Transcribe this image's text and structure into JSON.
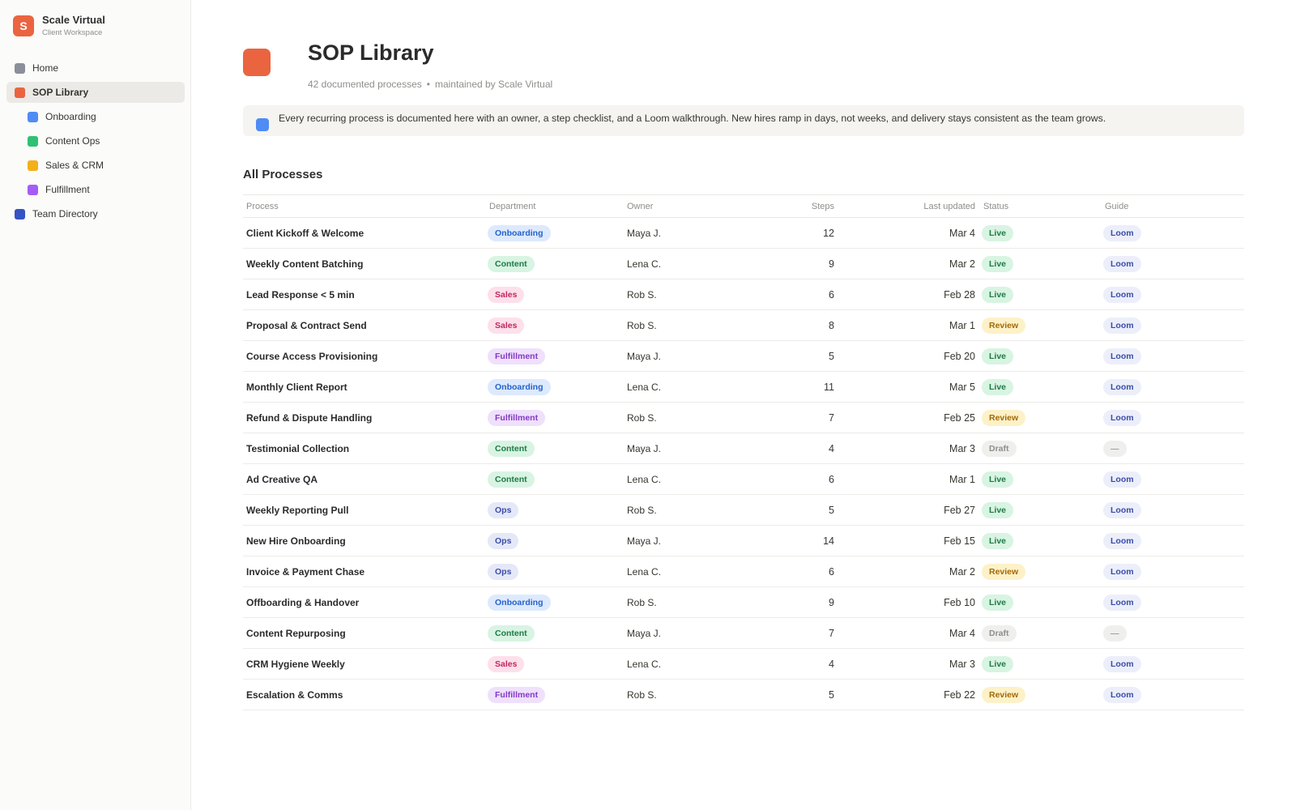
{
  "workspace": {
    "initial": "S",
    "name": "Scale Virtual",
    "subtitle": "Client Workspace"
  },
  "nav": [
    {
      "label": "Home",
      "color": "#8a8f99",
      "level": 0,
      "active": false
    },
    {
      "label": "SOP Library",
      "color": "#eb6440",
      "level": 0,
      "active": true
    },
    {
      "label": "Onboarding",
      "color": "#4f8cf5",
      "level": 1,
      "active": false
    },
    {
      "label": "Content Ops",
      "color": "#2fc172",
      "level": 1,
      "active": false
    },
    {
      "label": "Sales & CRM",
      "color": "#f2b019",
      "level": 1,
      "active": false
    },
    {
      "label": "Fulfillment",
      "color": "#a45cf5",
      "level": 1,
      "active": false
    },
    {
      "label": "Team Directory",
      "color": "#3653c4",
      "level": 0,
      "active": false
    }
  ],
  "page": {
    "title": "SOP Library",
    "meta_count": "42 documented processes",
    "meta_separator": "•",
    "meta_owner": "maintained by Scale Virtual",
    "callout": "Every recurring process is documented here with an owner, a step checklist, and a Loom walkthrough. New hires ramp in days, not weeks, and delivery stays consistent as the team grows.",
    "section_title": "All Processes"
  },
  "table": {
    "columns": [
      "Process",
      "Department",
      "Owner",
      "Steps",
      "Last updated",
      "Status",
      "Guide"
    ],
    "rows": [
      {
        "process": "Client Kickoff & Welcome",
        "department": "Onboarding",
        "owner": "Maya J.",
        "steps": "12",
        "updated": "Mar 4",
        "status": "Live",
        "guide": "Loom"
      },
      {
        "process": "Weekly Content Batching",
        "department": "Content",
        "owner": "Lena C.",
        "steps": "9",
        "updated": "Mar 2",
        "status": "Live",
        "guide": "Loom"
      },
      {
        "process": "Lead Response < 5 min",
        "department": "Sales",
        "owner": "Rob S.",
        "steps": "6",
        "updated": "Feb 28",
        "status": "Live",
        "guide": "Loom"
      },
      {
        "process": "Proposal & Contract Send",
        "department": "Sales",
        "owner": "Rob S.",
        "steps": "8",
        "updated": "Mar 1",
        "status": "Review",
        "guide": "Loom"
      },
      {
        "process": "Course Access Provisioning",
        "department": "Fulfillment",
        "owner": "Maya J.",
        "steps": "5",
        "updated": "Feb 20",
        "status": "Live",
        "guide": "Loom"
      },
      {
        "process": "Monthly Client Report",
        "department": "Onboarding",
        "owner": "Lena C.",
        "steps": "11",
        "updated": "Mar 5",
        "status": "Live",
        "guide": "Loom"
      },
      {
        "process": "Refund & Dispute Handling",
        "department": "Fulfillment",
        "owner": "Rob S.",
        "steps": "7",
        "updated": "Feb 25",
        "status": "Review",
        "guide": "Loom"
      },
      {
        "process": "Testimonial Collection",
        "department": "Content",
        "owner": "Maya J.",
        "steps": "4",
        "updated": "Mar 3",
        "status": "Draft",
        "guide": "—"
      },
      {
        "process": "Ad Creative QA",
        "department": "Content",
        "owner": "Lena C.",
        "steps": "6",
        "updated": "Mar 1",
        "status": "Live",
        "guide": "Loom"
      },
      {
        "process": "Weekly Reporting Pull",
        "department": "Ops",
        "owner": "Rob S.",
        "steps": "5",
        "updated": "Feb 27",
        "status": "Live",
        "guide": "Loom"
      },
      {
        "process": "New Hire Onboarding",
        "department": "Ops",
        "owner": "Maya J.",
        "steps": "14",
        "updated": "Feb 15",
        "status": "Live",
        "guide": "Loom"
      },
      {
        "process": "Invoice & Payment Chase",
        "department": "Ops",
        "owner": "Lena C.",
        "steps": "6",
        "updated": "Mar 2",
        "status": "Review",
        "guide": "Loom"
      },
      {
        "process": "Offboarding & Handover",
        "department": "Onboarding",
        "owner": "Rob S.",
        "steps": "9",
        "updated": "Feb 10",
        "status": "Live",
        "guide": "Loom"
      },
      {
        "process": "Content Repurposing",
        "department": "Content",
        "owner": "Maya J.",
        "steps": "7",
        "updated": "Mar 4",
        "status": "Draft",
        "guide": "—"
      },
      {
        "process": "CRM Hygiene Weekly",
        "department": "Sales",
        "owner": "Lena C.",
        "steps": "4",
        "updated": "Mar 3",
        "status": "Live",
        "guide": "Loom"
      },
      {
        "process": "Escalation & Comms",
        "department": "Fulfillment",
        "owner": "Rob S.",
        "steps": "5",
        "updated": "Feb 22",
        "status": "Review",
        "guide": "Loom"
      }
    ]
  },
  "colors": {
    "accent": "#eb6440",
    "department": {
      "Onboarding": {
        "bg": "#dde9fd",
        "fg": "#2563c9"
      },
      "Content": {
        "bg": "#d8f4e2",
        "fg": "#1f7a45"
      },
      "Sales": {
        "bg": "#fde0ea",
        "fg": "#c0285f"
      },
      "Fulfillment": {
        "bg": "#efe0fc",
        "fg": "#8339c5"
      },
      "Ops": {
        "bg": "#e5e8f7",
        "fg": "#3a4da8"
      }
    },
    "status": {
      "Live": {
        "bg": "#d8f4e2",
        "fg": "#1f7a45"
      },
      "Review": {
        "bg": "#fdf1c8",
        "fg": "#a36a07"
      },
      "Draft": {
        "bg": "#efefed",
        "fg": "#8e8e8a"
      }
    },
    "guide": {
      "Loom": {
        "bg": "#eceffa",
        "fg": "#3a4da8"
      },
      "—": {
        "bg": "#efefed",
        "fg": "#a0a09c"
      }
    }
  }
}
